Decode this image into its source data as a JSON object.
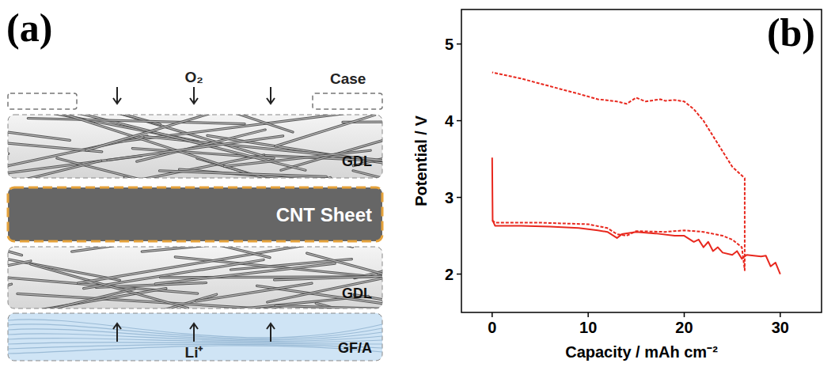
{
  "diagram": {
    "panel_label": "(a)",
    "gas": "O₂",
    "case_label": "Case",
    "ion": "Li⁺",
    "layers": [
      {
        "label": "GDL"
      },
      {
        "label": "CNT Sheet"
      },
      {
        "label": "GDL"
      },
      {
        "label": "GF/A"
      }
    ]
  },
  "chart_data": {
    "type": "line",
    "title": "(b)",
    "x_label": "Capacity / mAh cm⁻²",
    "y_label": "Potential / V",
    "xlim": [
      -3.2,
      34.3
    ],
    "ylim": [
      1.5,
      5.45
    ],
    "xticks": [
      0,
      10,
      20,
      30
    ],
    "yticks": [
      2,
      3,
      4,
      5
    ],
    "series": [
      {
        "color": "#e8281e",
        "line_style": "solid",
        "x": [
          0,
          0.05,
          0.3,
          3,
          6,
          9,
          11,
          12,
          13,
          13.5,
          15,
          17,
          19,
          20,
          21,
          21.5,
          22,
          22.5,
          23,
          23.5,
          24,
          25,
          25.5,
          26,
          26.5,
          28,
          28.5,
          29,
          29.5,
          30
        ],
        "values": [
          3.52,
          2.7,
          2.63,
          2.63,
          2.62,
          2.6,
          2.57,
          2.55,
          2.47,
          2.52,
          2.55,
          2.53,
          2.5,
          2.5,
          2.42,
          2.45,
          2.35,
          2.42,
          2.3,
          2.35,
          2.28,
          2.25,
          2.3,
          2.2,
          2.25,
          2.23,
          2.24,
          2.1,
          2.15,
          2.0
        ]
      },
      {
        "color": "#e8281e",
        "line_style": "dashed",
        "x": [
          0,
          0.3,
          5,
          10,
          12,
          13,
          14,
          15,
          18,
          20,
          22,
          24,
          25,
          26,
          26.3,
          26.3,
          25,
          24,
          23,
          22,
          21,
          20,
          19,
          18,
          17.5,
          16,
          15,
          14,
          13,
          11,
          9,
          6,
          3,
          0
        ],
        "values": [
          2.7,
          2.67,
          2.67,
          2.65,
          2.6,
          2.52,
          2.5,
          2.56,
          2.55,
          2.57,
          2.55,
          2.5,
          2.45,
          2.35,
          2.05,
          3.25,
          3.4,
          3.6,
          3.8,
          4.0,
          4.15,
          4.25,
          4.27,
          4.26,
          4.28,
          4.25,
          4.3,
          4.22,
          4.25,
          4.28,
          4.35,
          4.45,
          4.55,
          4.63
        ]
      }
    ]
  }
}
